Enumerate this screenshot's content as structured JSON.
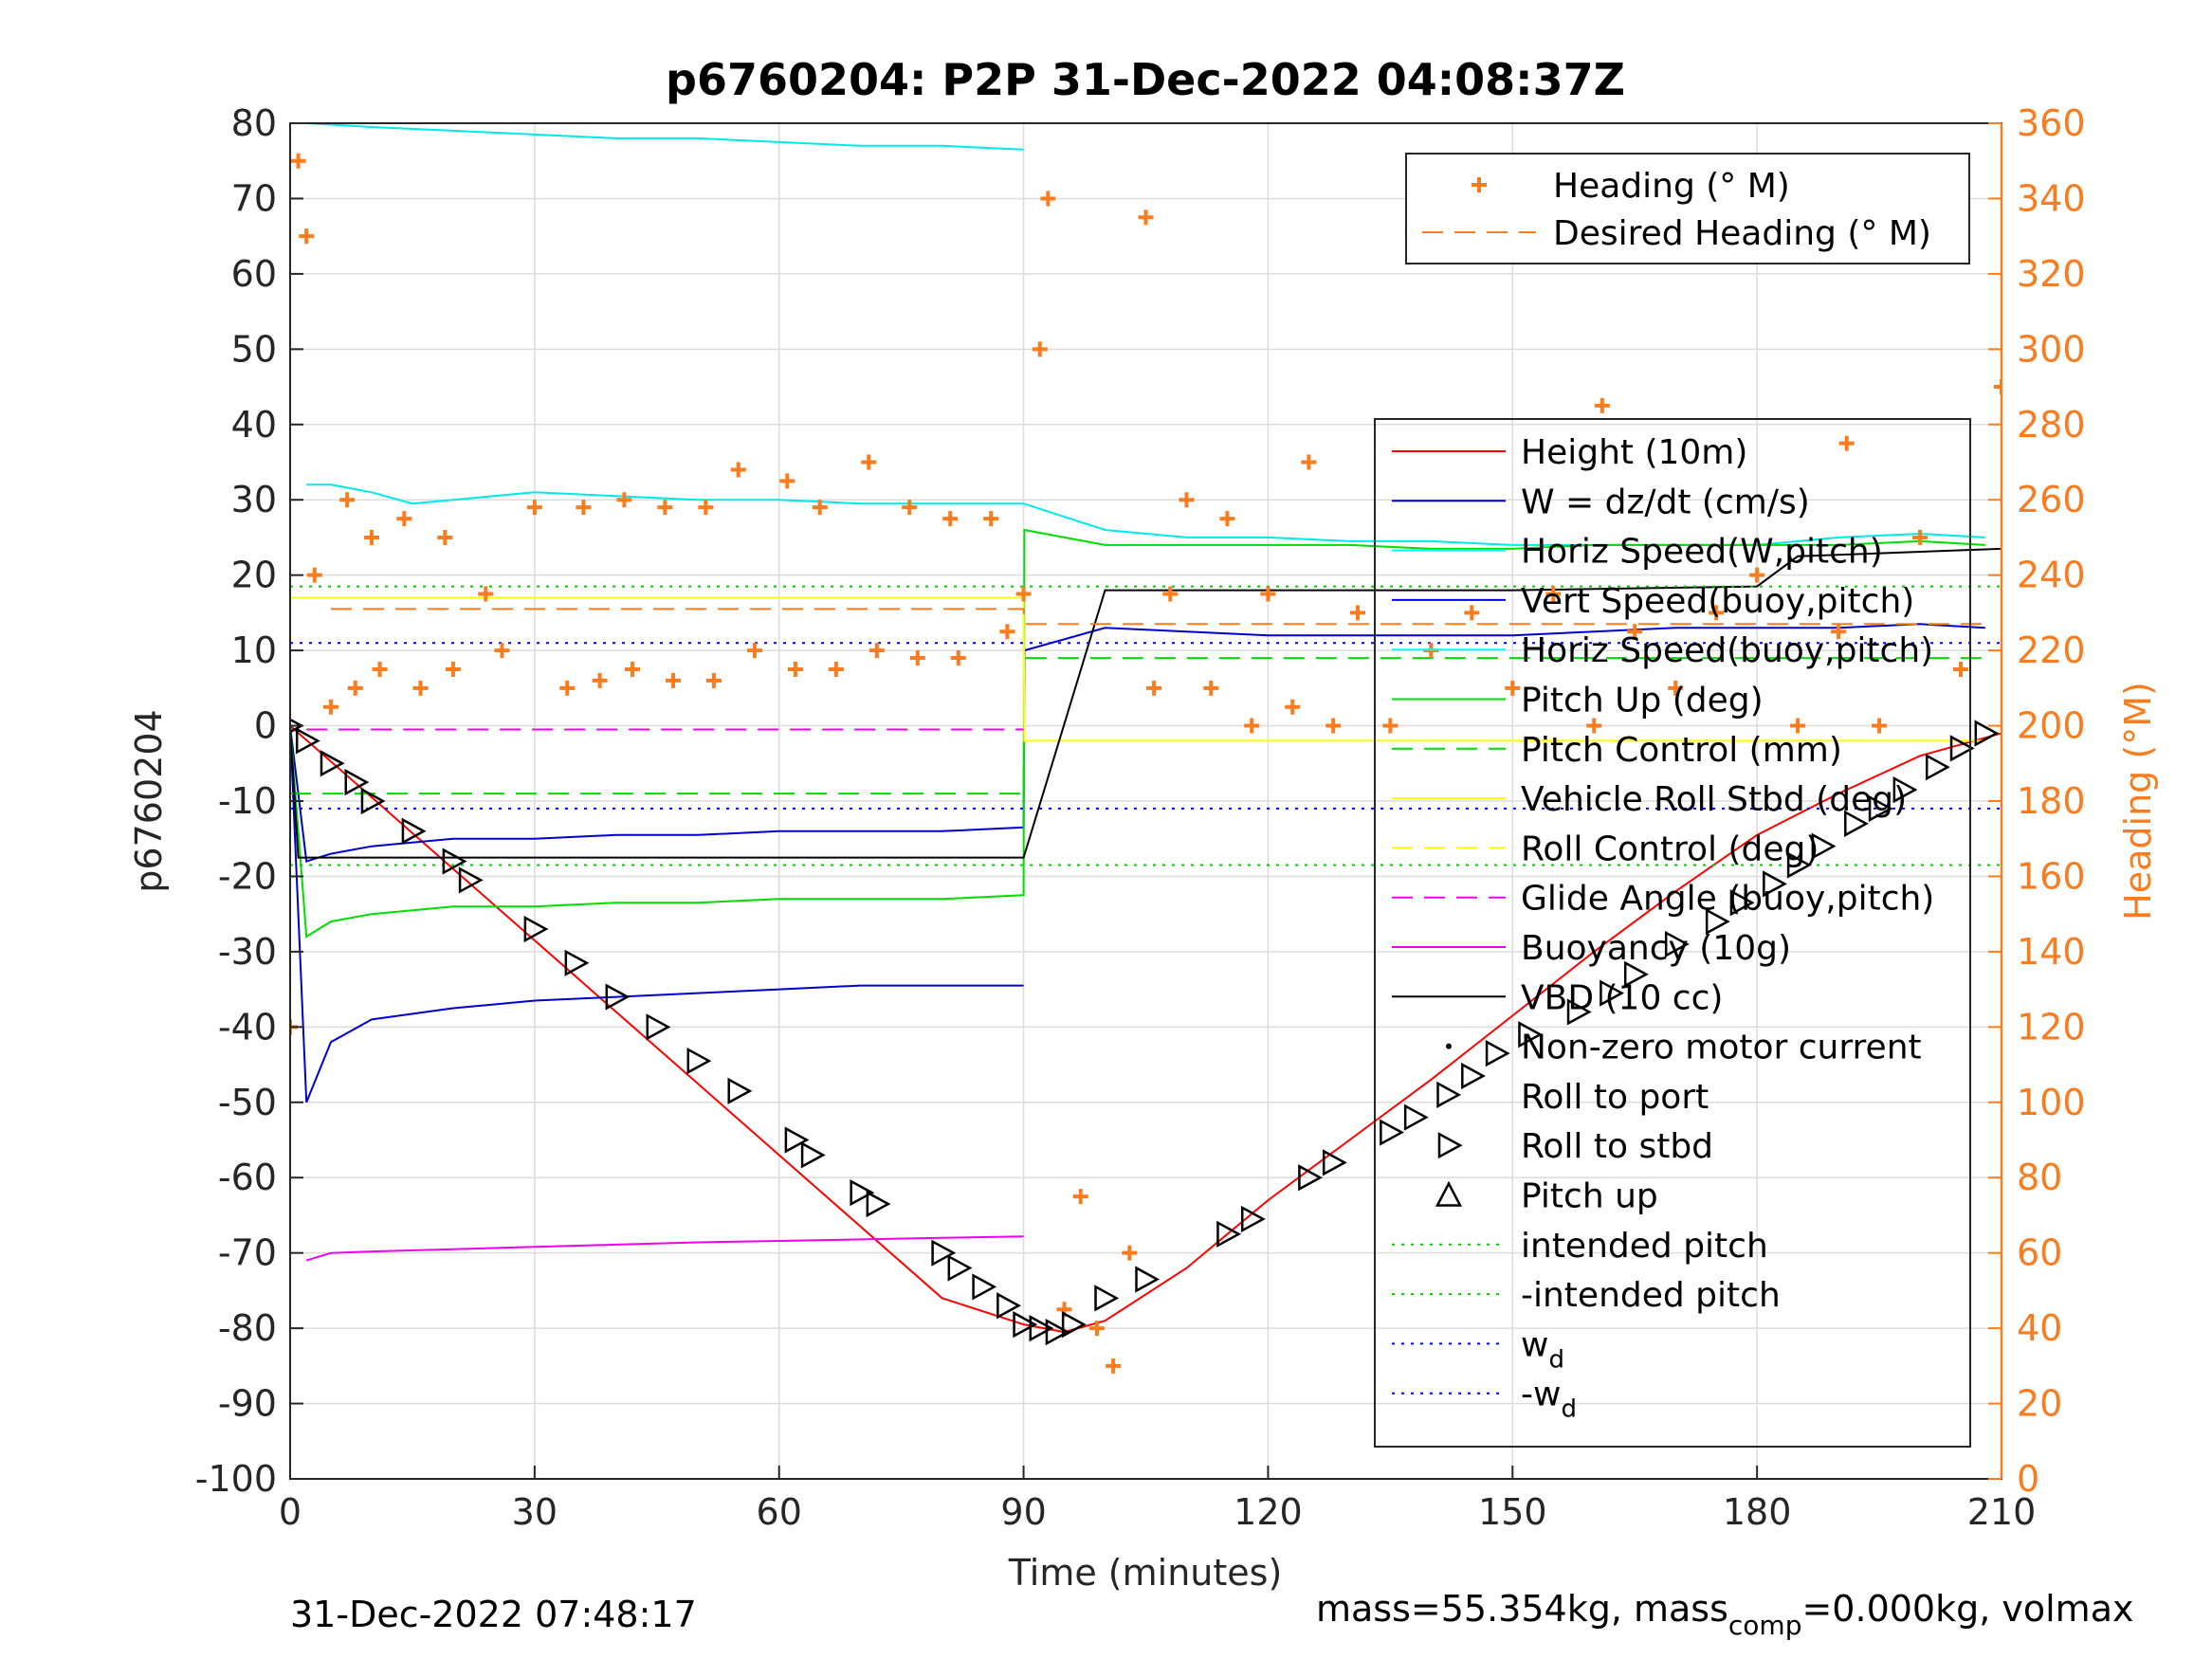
{
  "chart_data": {
    "type": "line",
    "title": "p6760204: P2P 31-Dec-2022 04:08:37Z",
    "xlabel": "Time (minutes)",
    "ylabel": "p6760204",
    "y2label": "Heading (°M)",
    "xlim": [
      0,
      210
    ],
    "ylim": [
      -100,
      80
    ],
    "y2lim": [
      0,
      360
    ],
    "xticks": [
      0,
      30,
      60,
      90,
      120,
      150,
      180,
      210
    ],
    "yticks": [
      80,
      70,
      60,
      50,
      40,
      30,
      20,
      10,
      0,
      -10,
      -20,
      -30,
      -40,
      -50,
      -60,
      -70,
      -80,
      -90,
      -100
    ],
    "y2ticks": [
      360,
      340,
      320,
      300,
      280,
      260,
      240,
      220,
      200,
      180,
      160,
      140,
      120,
      100,
      80,
      60,
      40,
      20,
      0
    ],
    "grid": true,
    "footer_left": "31-Dec-2022 07:48:17",
    "footer_right": "mass=55.354kg, mass",
    "footer_right_sub": "comp",
    "footer_right_tail": "=0.000kg, volmax",
    "colors": {
      "heading": "#f97c1f",
      "height": "#ff0000",
      "w": "#0000cc",
      "horiz_speed_w": "#00ffff",
      "pitch": "#00dd00",
      "roll": "#ffff00",
      "buoyancy": "#ee00ee",
      "vbd": "#000000",
      "intended": "#00cc00",
      "wd": "#0000ff"
    },
    "legend_heading": [
      {
        "label": "Heading (° M)",
        "style": "plus",
        "color": "#f97c1f"
      },
      {
        "label": "Desired Heading (° M)",
        "style": "dash",
        "color": "#f97c1f"
      }
    ],
    "legend_main": [
      {
        "label": "Height (10m)",
        "style": "line",
        "color": "#ff0000"
      },
      {
        "label": "W = dz/dt (cm/s)",
        "style": "line",
        "color": "#0000cc"
      },
      {
        "label": "Horiz Speed(W,pitch)",
        "style": "line",
        "color": "#00ffff"
      },
      {
        "label": "Vert Speed(buoy,pitch)",
        "style": "line",
        "color": "#0000ff"
      },
      {
        "label": "Horiz Speed(buoy,pitch)",
        "style": "line",
        "color": "#00ffff"
      },
      {
        "label": "Pitch Up (deg)",
        "style": "line",
        "color": "#00dd00"
      },
      {
        "label": "Pitch Control (mm)",
        "style": "dash",
        "color": "#00dd00"
      },
      {
        "label": "Vehicle Roll Stbd (deg)",
        "style": "line",
        "color": "#ffff00"
      },
      {
        "label": "Roll Control (deg)",
        "style": "dash",
        "color": "#ffff00"
      },
      {
        "label": "Glide Angle (buoy,pitch)",
        "style": "dash",
        "color": "#ee00ee"
      },
      {
        "label": "Buoyancy (10g)",
        "style": "line",
        "color": "#ee00ee"
      },
      {
        "label": "VBD (10 cc)",
        "style": "line",
        "color": "#000000"
      },
      {
        "label": "Non-zero motor current",
        "style": "dot",
        "color": "#000000"
      },
      {
        "label": "Roll to port",
        "style": "tri-left",
        "color": "#000000"
      },
      {
        "label": "Roll to stbd",
        "style": "tri-right",
        "color": "#000000"
      },
      {
        "label": "Pitch up",
        "style": "tri-up",
        "color": "#000000"
      },
      {
        "label": "intended pitch",
        "style": "dotted",
        "color": "#00cc00"
      },
      {
        "label": "-intended pitch",
        "style": "dotted",
        "color": "#00cc00"
      },
      {
        "label": "w",
        "sub": "d",
        "style": "dotted",
        "color": "#0000ff"
      },
      {
        "label": "-w",
        "sub": "d",
        "style": "dotted",
        "color": "#0000ff"
      }
    ],
    "series": [
      {
        "name": "Height (10m)",
        "axis": "left",
        "x": [
          0,
          10,
          20,
          30,
          40,
          50,
          60,
          70,
          80,
          90,
          95,
          100,
          110,
          120,
          130,
          140,
          150,
          160,
          170,
          180,
          190,
          200,
          210
        ],
        "y": [
          0,
          -9.5,
          -19,
          -28.5,
          -38,
          -47.5,
          -57,
          -66.5,
          -76,
          -79.5,
          -80.5,
          -79,
          -72,
          -63,
          -55,
          -47,
          -38.5,
          -30,
          -22,
          -14.5,
          -9,
          -4,
          -1
        ]
      },
      {
        "name": "W = dz/dt (cm/s)",
        "axis": "left",
        "x": [
          0,
          2,
          5,
          10,
          20,
          30,
          40,
          50,
          60,
          70,
          80,
          90,
          90.1,
          100,
          110,
          120,
          130,
          140,
          150,
          160,
          170,
          180,
          190,
          200,
          208
        ],
        "y": [
          0,
          -18,
          -17,
          -16,
          -15,
          -15,
          -14.5,
          -14.5,
          -14,
          -14,
          -14,
          -13.5,
          10,
          13,
          12.5,
          12,
          12,
          12,
          12,
          12.5,
          13,
          13,
          13,
          13.5,
          13
        ]
      },
      {
        "name": "Vert Speed(buoy,pitch)",
        "axis": "left",
        "x": [
          0,
          2,
          5,
          10,
          20,
          30,
          40,
          50,
          60,
          70,
          80,
          90
        ],
        "y": [
          0,
          -50,
          -42,
          -39,
          -37.5,
          -36.5,
          -36,
          -35.5,
          -35,
          -34.5,
          -34.5,
          -34.5
        ]
      },
      {
        "name": "Horiz Speed(W,pitch)",
        "axis": "left",
        "x": [
          2,
          5,
          10,
          15,
          20,
          30,
          40,
          50,
          60,
          70,
          80,
          90,
          100,
          110,
          120,
          130,
          140,
          150,
          160,
          170,
          180,
          190,
          200,
          208
        ],
        "y": [
          32,
          32,
          31,
          29.5,
          30,
          31,
          30.5,
          30,
          30,
          29.5,
          29.5,
          29.5,
          26,
          25,
          25,
          24.5,
          24.5,
          24,
          24,
          24,
          24,
          25,
          25.5,
          25
        ]
      },
      {
        "name": "Horiz Speed(buoy,pitch)",
        "axis": "left",
        "x": [
          2,
          10,
          20,
          30,
          40,
          50,
          60,
          70,
          80,
          90
        ],
        "y": [
          80,
          79.5,
          79,
          78.5,
          78,
          78,
          77.5,
          77,
          77,
          76.5
        ]
      },
      {
        "name": "Pitch Up (deg)",
        "axis": "left",
        "x": [
          0,
          2,
          5,
          10,
          20,
          30,
          40,
          50,
          60,
          70,
          80,
          90,
          90.1,
          100,
          110,
          120,
          130,
          140,
          150,
          160,
          170,
          180,
          190,
          200,
          208
        ],
        "y": [
          0,
          -28,
          -26,
          -25,
          -24,
          -24,
          -23.5,
          -23.5,
          -23,
          -23,
          -23,
          -22.5,
          26,
          24,
          24,
          24,
          24,
          23.5,
          23.5,
          24,
          24,
          24,
          24,
          24.5,
          24
        ]
      },
      {
        "name": "Pitch Control (mm)",
        "axis": "left",
        "x": [
          0,
          90,
          90.1,
          208
        ],
        "y": [
          -9,
          -9,
          9,
          9
        ]
      },
      {
        "name": "Vehicle Roll Stbd (deg)",
        "axis": "left",
        "x": [
          0,
          90,
          90.1,
          208
        ],
        "y": [
          17,
          17,
          -2,
          -2
        ]
      },
      {
        "name": "Glide Angle (buoy,pitch)",
        "axis": "left",
        "x": [
          2,
          90
        ],
        "y": [
          -0.5,
          -0.5
        ]
      },
      {
        "name": "Buoyancy (10g)",
        "axis": "left",
        "x": [
          2,
          5,
          10,
          20,
          30,
          40,
          50,
          60,
          70,
          80,
          90
        ],
        "y": [
          -71,
          -70,
          -69.8,
          -69.5,
          -69.2,
          -68.9,
          -68.6,
          -68.4,
          -68.2,
          -68,
          -67.8
        ]
      },
      {
        "name": "VBD (10 cc)",
        "axis": "left",
        "x": [
          0,
          1,
          90,
          100,
          150,
          180,
          185,
          210
        ],
        "y": [
          0,
          -17.5,
          -17.5,
          18,
          18,
          18.5,
          22.5,
          23.5
        ]
      },
      {
        "name": "intended pitch",
        "axis": "left",
        "x": [
          0,
          210
        ],
        "y": [
          18.5,
          18.5
        ]
      },
      {
        "name": "-intended pitch",
        "axis": "left",
        "x": [
          0,
          210
        ],
        "y": [
          -18.5,
          -18.5
        ]
      },
      {
        "name": "w_d",
        "axis": "left",
        "x": [
          0,
          210
        ],
        "y": [
          11,
          11
        ]
      },
      {
        "name": "-w_d",
        "axis": "left",
        "x": [
          0,
          210
        ],
        "y": [
          -11,
          -11
        ]
      },
      {
        "name": "Desired Heading (° M)",
        "axis": "right",
        "x": [
          5,
          90,
          90.1,
          208
        ],
        "y": [
          231,
          231,
          227,
          227
        ]
      },
      {
        "name": "Heading (° M)",
        "axis": "right",
        "x": [
          0,
          1,
          2,
          3,
          5,
          7,
          8,
          10,
          11,
          14,
          16,
          19,
          20,
          24,
          26,
          30,
          34,
          36,
          38,
          41,
          42,
          46,
          47,
          51,
          52,
          55,
          57,
          61,
          62,
          65,
          67,
          71,
          72,
          76,
          77,
          81,
          82,
          86,
          88,
          90,
          92,
          93,
          95,
          97,
          99,
          101,
          103,
          105,
          106,
          108,
          110,
          113,
          115,
          118,
          120,
          123,
          125,
          128,
          131,
          135,
          140,
          145,
          150,
          155,
          160,
          161,
          165,
          170,
          175,
          180,
          185,
          190,
          191,
          195,
          200,
          205,
          210
        ],
        "y": [
          120,
          350,
          330,
          240,
          205,
          260,
          210,
          250,
          215,
          255,
          210,
          250,
          215,
          235,
          220,
          258,
          210,
          258,
          212,
          260,
          215,
          258,
          212,
          258,
          212,
          268,
          220,
          265,
          215,
          258,
          215,
          270,
          220,
          258,
          218,
          255,
          218,
          255,
          225,
          235,
          300,
          340,
          45,
          75,
          40,
          30,
          60,
          335,
          210,
          235,
          260,
          210,
          255,
          200,
          235,
          205,
          270,
          200,
          230,
          200,
          220,
          230,
          210,
          235,
          200,
          285,
          225,
          210,
          230,
          240,
          200,
          225,
          275,
          200,
          250,
          215,
          290
        ]
      },
      {
        "name": "Roll markers",
        "axis": "left",
        "x": [
          0,
          2,
          5,
          8,
          10,
          15,
          20,
          22,
          30,
          35,
          40,
          45,
          50,
          55,
          62,
          64,
          70,
          72,
          80,
          82,
          85,
          88,
          90,
          92,
          94,
          96,
          100,
          105,
          115,
          118,
          125,
          128,
          135,
          138,
          142,
          145,
          148,
          152,
          158,
          162,
          165,
          170,
          175,
          178,
          182,
          185,
          188,
          192,
          195,
          198,
          202,
          205,
          208
        ],
        "y": [
          0,
          -2,
          -5,
          -7.5,
          -10,
          -14,
          -18,
          -20.5,
          -27,
          -31.5,
          -36,
          -40,
          -44.5,
          -48.5,
          -55,
          -57,
          -62,
          -63.5,
          -70,
          -72,
          -74.5,
          -77,
          -79.5,
          -80,
          -80.5,
          -79.5,
          -76,
          -73.5,
          -67.5,
          -65.5,
          -60,
          -58,
          -54,
          -52,
          -49,
          -46.5,
          -43.5,
          -41,
          -38,
          -35.5,
          -33,
          -29,
          -26,
          -23.5,
          -21,
          -18.5,
          -16,
          -13,
          -11,
          -8.5,
          -5.5,
          -3,
          -1
        ]
      }
    ]
  }
}
